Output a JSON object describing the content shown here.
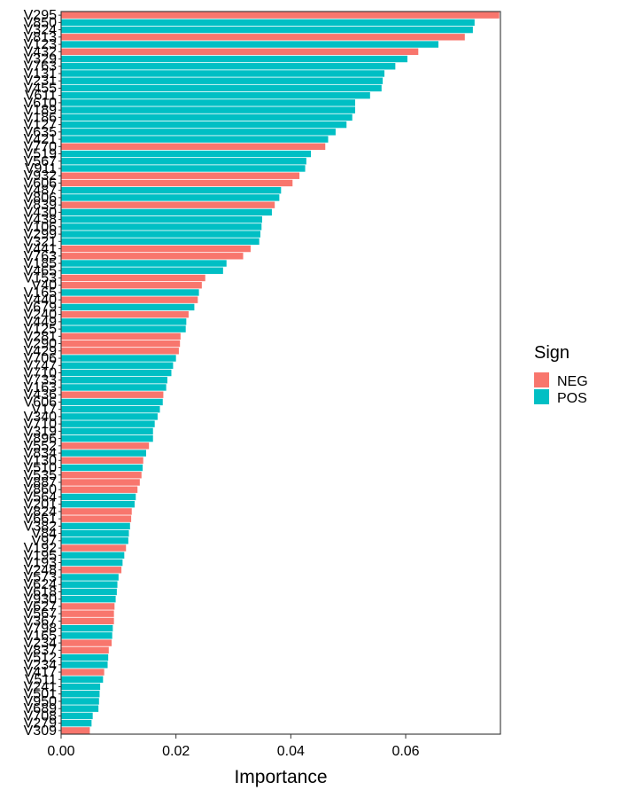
{
  "chart_data": {
    "type": "bar",
    "orientation": "horizontal",
    "xlabel": "Importance",
    "ylabel": "",
    "xlim": [
      0,
      0.0765
    ],
    "x_ticks": [
      0.0,
      0.02,
      0.04,
      0.06
    ],
    "x_tick_labels": [
      "0.00",
      "0.02",
      "0.04",
      "0.06"
    ],
    "grid": false,
    "legend": {
      "title": "Sign",
      "position": "right",
      "entries": [
        {
          "label": "NEG",
          "color": "#F8766D"
        },
        {
          "label": "POS",
          "color": "#00BFC4"
        }
      ]
    },
    "colors": {
      "NEG": "#F8766D",
      "POS": "#00BFC4"
    },
    "bars": [
      {
        "label": "V295",
        "value": 0.0763,
        "sign": "NEG"
      },
      {
        "label": "V850",
        "value": 0.072,
        "sign": "POS"
      },
      {
        "label": "V324",
        "value": 0.0717,
        "sign": "POS"
      },
      {
        "label": "V813",
        "value": 0.0703,
        "sign": "NEG"
      },
      {
        "label": "V123",
        "value": 0.0657,
        "sign": "POS"
      },
      {
        "label": "V432",
        "value": 0.0622,
        "sign": "NEG"
      },
      {
        "label": "V329",
        "value": 0.0603,
        "sign": "POS"
      },
      {
        "label": "V763",
        "value": 0.0582,
        "sign": "POS"
      },
      {
        "label": "V131",
        "value": 0.0563,
        "sign": "POS"
      },
      {
        "label": "V231",
        "value": 0.056,
        "sign": "POS"
      },
      {
        "label": "V455",
        "value": 0.0558,
        "sign": "POS"
      },
      {
        "label": "V611",
        "value": 0.0538,
        "sign": "POS"
      },
      {
        "label": "V610",
        "value": 0.0512,
        "sign": "POS"
      },
      {
        "label": "V189",
        "value": 0.0512,
        "sign": "POS"
      },
      {
        "label": "V186",
        "value": 0.0507,
        "sign": "POS"
      },
      {
        "label": "V127",
        "value": 0.0497,
        "sign": "POS"
      },
      {
        "label": "V635",
        "value": 0.0478,
        "sign": "POS"
      },
      {
        "label": "V421",
        "value": 0.0465,
        "sign": "POS"
      },
      {
        "label": "V770",
        "value": 0.046,
        "sign": "NEG"
      },
      {
        "label": "V519",
        "value": 0.0435,
        "sign": "POS"
      },
      {
        "label": "V567",
        "value": 0.0427,
        "sign": "POS"
      },
      {
        "label": "V911",
        "value": 0.0425,
        "sign": "POS"
      },
      {
        "label": "V932",
        "value": 0.0415,
        "sign": "NEG"
      },
      {
        "label": "V606",
        "value": 0.0403,
        "sign": "NEG"
      },
      {
        "label": "V487",
        "value": 0.0383,
        "sign": "POS"
      },
      {
        "label": "V806",
        "value": 0.038,
        "sign": "POS"
      },
      {
        "label": "V839",
        "value": 0.0372,
        "sign": "NEG"
      },
      {
        "label": "V430",
        "value": 0.0367,
        "sign": "POS"
      },
      {
        "label": "V438",
        "value": 0.035,
        "sign": "POS"
      },
      {
        "label": "V106",
        "value": 0.0349,
        "sign": "POS"
      },
      {
        "label": "V299",
        "value": 0.0347,
        "sign": "POS"
      },
      {
        "label": "V321",
        "value": 0.0345,
        "sign": "POS"
      },
      {
        "label": "V441",
        "value": 0.033,
        "sign": "NEG"
      },
      {
        "label": "V763",
        "value": 0.0317,
        "sign": "NEG"
      },
      {
        "label": "V185",
        "value": 0.0288,
        "sign": "POS"
      },
      {
        "label": "V465",
        "value": 0.0282,
        "sign": "POS"
      },
      {
        "label": "V153",
        "value": 0.0251,
        "sign": "NEG"
      },
      {
        "label": "V40",
        "value": 0.0245,
        "sign": "NEG"
      },
      {
        "label": "V165",
        "value": 0.024,
        "sign": "POS"
      },
      {
        "label": "V440",
        "value": 0.0238,
        "sign": "NEG"
      },
      {
        "label": "V679",
        "value": 0.0232,
        "sign": "POS"
      },
      {
        "label": "V240",
        "value": 0.0222,
        "sign": "NEG"
      },
      {
        "label": "V449",
        "value": 0.0218,
        "sign": "POS"
      },
      {
        "label": "V125",
        "value": 0.0217,
        "sign": "POS"
      },
      {
        "label": "V281",
        "value": 0.0208,
        "sign": "NEG"
      },
      {
        "label": "V290",
        "value": 0.0207,
        "sign": "NEG"
      },
      {
        "label": "V429",
        "value": 0.0205,
        "sign": "NEG"
      },
      {
        "label": "V706",
        "value": 0.02,
        "sign": "POS"
      },
      {
        "label": "V747",
        "value": 0.0195,
        "sign": "POS"
      },
      {
        "label": "V710",
        "value": 0.0192,
        "sign": "POS"
      },
      {
        "label": "V733",
        "value": 0.0185,
        "sign": "POS"
      },
      {
        "label": "V163",
        "value": 0.0183,
        "sign": "POS"
      },
      {
        "label": "V436",
        "value": 0.0178,
        "sign": "NEG"
      },
      {
        "label": "V606",
        "value": 0.0177,
        "sign": "POS"
      },
      {
        "label": "V17",
        "value": 0.0172,
        "sign": "POS"
      },
      {
        "label": "V340",
        "value": 0.0168,
        "sign": "POS"
      },
      {
        "label": "V710",
        "value": 0.0163,
        "sign": "POS"
      },
      {
        "label": "V319",
        "value": 0.016,
        "sign": "POS"
      },
      {
        "label": "V896",
        "value": 0.016,
        "sign": "POS"
      },
      {
        "label": "V552",
        "value": 0.0153,
        "sign": "NEG"
      },
      {
        "label": "V834",
        "value": 0.0148,
        "sign": "POS"
      },
      {
        "label": "V130",
        "value": 0.0143,
        "sign": "NEG"
      },
      {
        "label": "V510",
        "value": 0.0142,
        "sign": "POS"
      },
      {
        "label": "V535",
        "value": 0.014,
        "sign": "NEG"
      },
      {
        "label": "V887",
        "value": 0.0137,
        "sign": "NEG"
      },
      {
        "label": "V860",
        "value": 0.0133,
        "sign": "NEG"
      },
      {
        "label": "V564",
        "value": 0.013,
        "sign": "POS"
      },
      {
        "label": "V201",
        "value": 0.0128,
        "sign": "POS"
      },
      {
        "label": "V824",
        "value": 0.0123,
        "sign": "NEG"
      },
      {
        "label": "V661",
        "value": 0.0122,
        "sign": "NEG"
      },
      {
        "label": "V382",
        "value": 0.012,
        "sign": "POS"
      },
      {
        "label": "V84",
        "value": 0.0118,
        "sign": "POS"
      },
      {
        "label": "V97",
        "value": 0.0117,
        "sign": "POS"
      },
      {
        "label": "V192",
        "value": 0.0113,
        "sign": "NEG"
      },
      {
        "label": "V195",
        "value": 0.011,
        "sign": "POS"
      },
      {
        "label": "V193",
        "value": 0.0107,
        "sign": "POS"
      },
      {
        "label": "V248",
        "value": 0.0105,
        "sign": "NEG"
      },
      {
        "label": "V573",
        "value": 0.01,
        "sign": "POS"
      },
      {
        "label": "V624",
        "value": 0.0098,
        "sign": "POS"
      },
      {
        "label": "V618",
        "value": 0.0097,
        "sign": "POS"
      },
      {
        "label": "V930",
        "value": 0.0095,
        "sign": "POS"
      },
      {
        "label": "V627",
        "value": 0.0093,
        "sign": "NEG"
      },
      {
        "label": "V567",
        "value": 0.0092,
        "sign": "NEG"
      },
      {
        "label": "V367",
        "value": 0.0092,
        "sign": "NEG"
      },
      {
        "label": "V798",
        "value": 0.009,
        "sign": "POS"
      },
      {
        "label": "V165",
        "value": 0.0089,
        "sign": "POS"
      },
      {
        "label": "V234",
        "value": 0.0088,
        "sign": "NEG"
      },
      {
        "label": "V837",
        "value": 0.0083,
        "sign": "NEG"
      },
      {
        "label": "V512",
        "value": 0.0082,
        "sign": "POS"
      },
      {
        "label": "V234",
        "value": 0.0081,
        "sign": "POS"
      },
      {
        "label": "V417",
        "value": 0.0075,
        "sign": "NEG"
      },
      {
        "label": "V511",
        "value": 0.0073,
        "sign": "POS"
      },
      {
        "label": "V241",
        "value": 0.0068,
        "sign": "POS"
      },
      {
        "label": "V501",
        "value": 0.0067,
        "sign": "POS"
      },
      {
        "label": "V950",
        "value": 0.0066,
        "sign": "POS"
      },
      {
        "label": "V689",
        "value": 0.0065,
        "sign": "POS"
      },
      {
        "label": "V708",
        "value": 0.0055,
        "sign": "POS"
      },
      {
        "label": "V279",
        "value": 0.0053,
        "sign": "POS"
      },
      {
        "label": "V309",
        "value": 0.005,
        "sign": "NEG"
      }
    ]
  }
}
